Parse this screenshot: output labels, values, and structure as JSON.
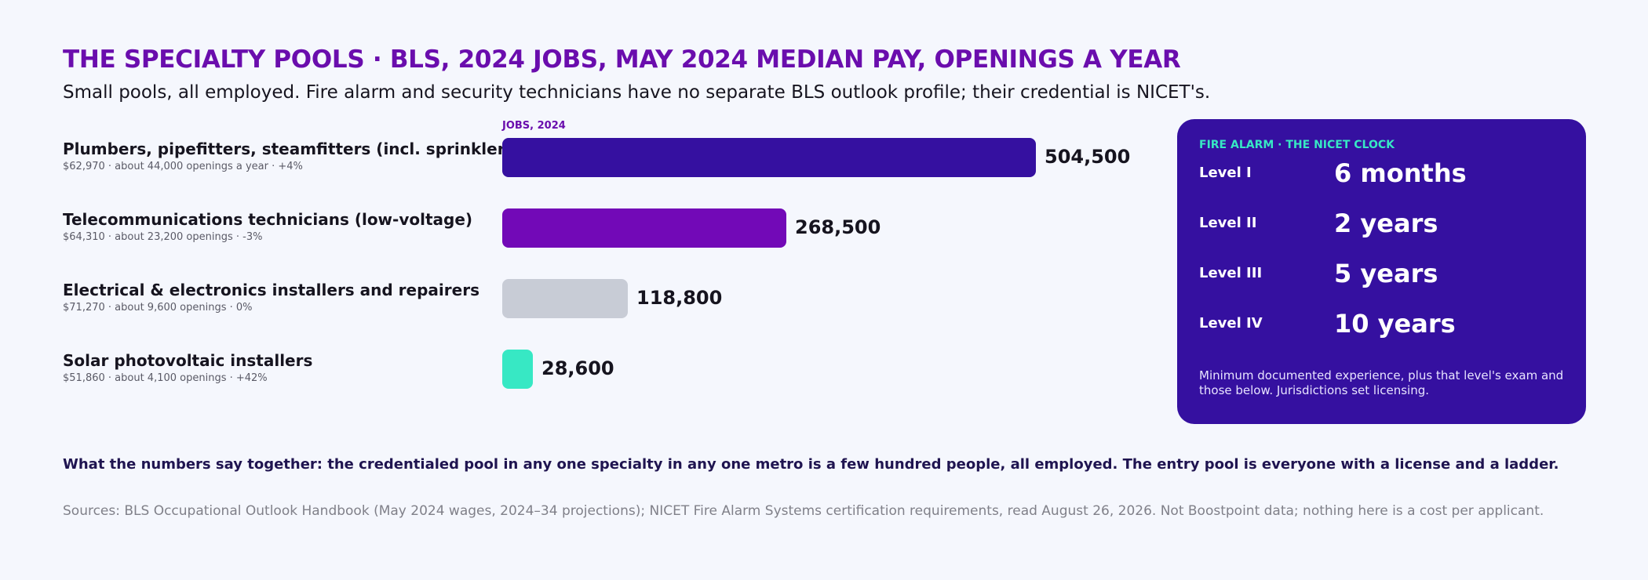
{
  "header": {
    "title": "THE SPECIALTY POOLS · BLS, 2024 JOBS, MAY 2024 MEDIAN PAY, OPENINGS A YEAR",
    "subtitle": "Small pools, all employed. Fire alarm and security technicians have no separate BLS outlook profile; their credential is NICET's."
  },
  "chart_data": {
    "type": "bar",
    "orientation": "horizontal",
    "title": "",
    "xlabel": "JOBS, 2024",
    "ylabel": "",
    "categories": [
      "Plumbers, pipefitters, steamfitters (incl. sprinkler fitters)",
      "Telecommunications technicians (low-voltage)",
      "Electrical & electronics installers and repairers",
      "Solar photovoltaic installers"
    ],
    "values": [
      504500,
      268500,
      118800,
      28600
    ],
    "value_labels": [
      "504,500",
      "268,500",
      "118,800",
      "28,600"
    ],
    "meta": [
      "$62,970 · about 44,000 openings a year · +4%",
      "$64,310 · about 23,200 openings · -3%",
      "$71,270 · about 9,600 openings · 0%",
      "$51,860 · about 4,100 openings · +42%"
    ],
    "colors": [
      "#3510a0",
      "#7209b7",
      "#c8ccd6",
      "#37e8c4"
    ],
    "xlim": [
      0,
      504500
    ],
    "grid": false,
    "legend": "none"
  },
  "card": {
    "title": "FIRE ALARM · THE NICET CLOCK",
    "levels": [
      {
        "label": "Level I",
        "value": "6 months"
      },
      {
        "label": "Level II",
        "value": "2 years"
      },
      {
        "label": "Level III",
        "value": "5 years"
      },
      {
        "label": "Level IV",
        "value": "10 years"
      }
    ],
    "note": "Minimum documented experience, plus that level's exam and those below. Jurisdictions set licensing.",
    "background": "#3510a0",
    "accent": "#37e8c4"
  },
  "footer": {
    "takeaway": "What the numbers say together: the credentialed pool in any one specialty in any one metro is a few hundred people, all employed. The entry pool is everyone with a license and a ladder.",
    "sources": "Sources: BLS Occupational Outlook Handbook (May 2024 wages, 2024–34 projections); NICET Fire Alarm Systems certification requirements, read August 26, 2026. Not Boostpoint data; nothing here is a cost per applicant."
  }
}
